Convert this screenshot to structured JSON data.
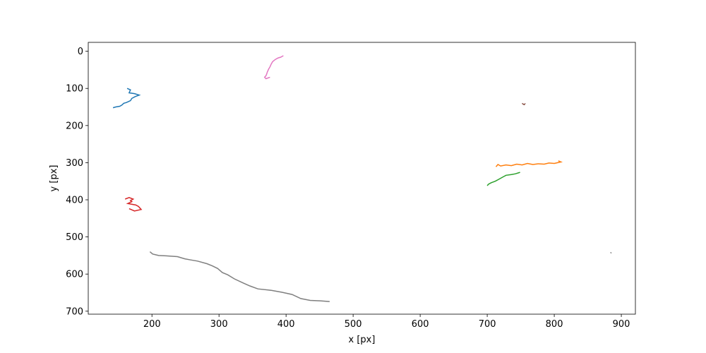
{
  "chart_data": {
    "type": "line",
    "title": "",
    "xlabel": "x [px]",
    "ylabel": "y [px]",
    "xlim": [
      105,
      921
    ],
    "ylim": [
      708,
      -24
    ],
    "y_inverted": true,
    "grid": false,
    "legend": "none",
    "xticks": [
      200,
      300,
      400,
      500,
      600,
      700,
      800,
      900
    ],
    "yticks": [
      0,
      100,
      200,
      300,
      400,
      500,
      600,
      700
    ],
    "series": [
      {
        "color": "#1f77b4",
        "x": [
          163,
          168,
          166,
          174,
          181,
          175,
          170,
          168,
          162,
          158,
          155,
          152,
          146,
          142
        ],
        "y": [
          100,
          104,
          112,
          114,
          118,
          122,
          127,
          133,
          138,
          140,
          145,
          148,
          150,
          152
        ]
      },
      {
        "color": "#ff7f0e",
        "x": [
          806,
          810,
          800,
          792,
          785,
          776,
          768,
          760,
          752,
          744,
          736,
          728,
          720,
          716,
          713
        ],
        "y": [
          295,
          298,
          302,
          301,
          304,
          303,
          305,
          302,
          306,
          304,
          308,
          306,
          309,
          305,
          311
        ]
      },
      {
        "color": "#2ca02c",
        "x": [
          749,
          742,
          736,
          728,
          724,
          720,
          716,
          712,
          706,
          702,
          700
        ],
        "y": [
          326,
          330,
          332,
          334,
          338,
          342,
          346,
          350,
          354,
          358,
          362
        ]
      },
      {
        "color": "#d62728",
        "x": [
          160,
          166,
          172,
          168,
          170,
          164,
          176,
          180,
          184,
          174,
          166
        ],
        "y": [
          398,
          394,
          398,
          402,
          405,
          410,
          414,
          418,
          426,
          430,
          424
        ]
      },
      {
        "color": "#9467bd",
        "x": [],
        "y": []
      },
      {
        "color": "#8c564b",
        "x": [
          752,
          754,
          756,
          755
        ],
        "y": [
          140,
          143,
          142,
          145
        ]
      },
      {
        "color": "#e377c2",
        "x": [
          396,
          392,
          388,
          384,
          380,
          378,
          376,
          374,
          372,
          371,
          370,
          368,
          370,
          376
        ],
        "y": [
          12,
          16,
          18,
          22,
          28,
          34,
          42,
          48,
          56,
          62,
          66,
          70,
          74,
          70
        ]
      },
      {
        "color": "#7f7f7f",
        "x": [
          197,
          201,
          210,
          221,
          238,
          249,
          258,
          268,
          282,
          290,
          298,
          305,
          313,
          323,
          336,
          346,
          358,
          378,
          394,
          409,
          422,
          436,
          451,
          465
        ],
        "y": [
          540,
          546,
          550,
          551,
          553,
          559,
          562,
          565,
          572,
          578,
          585,
          596,
          602,
          613,
          624,
          632,
          640,
          644,
          649,
          655,
          666,
          671,
          672,
          674
        ]
      },
      {
        "color": "#bcbd22",
        "x": [],
        "y": []
      },
      {
        "color": "#17becf",
        "x": [],
        "y": []
      },
      {
        "color": "#7f7f7f",
        "x": [
          884,
          885
        ],
        "y": [
          541,
          544
        ]
      }
    ]
  }
}
